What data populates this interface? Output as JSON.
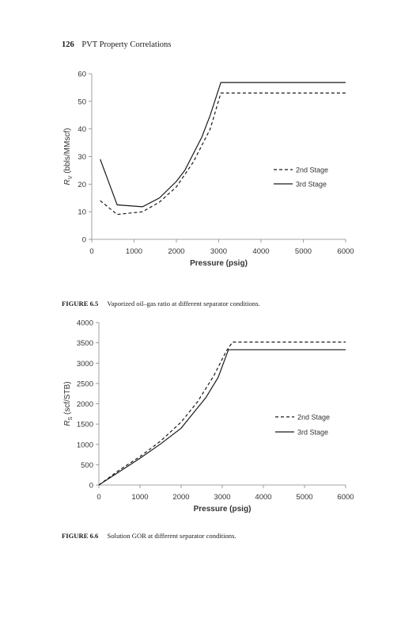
{
  "page": {
    "number": "126",
    "running_title": "PVT Property Correlations"
  },
  "figures": [
    {
      "label": "FIGURE 6.5",
      "caption": "Vaporized oil–gas ratio at different separator conditions."
    },
    {
      "label": "FIGURE 6.6",
      "caption": "Solution GOR at different separator conditions."
    }
  ],
  "chart_data": [
    {
      "type": "line",
      "title": "",
      "xlabel": "Pressure (psig)",
      "ylabel_main": "R",
      "ylabel_sub": "V",
      "ylabel_rest": " (bbls/MMscf)",
      "xlim": [
        0,
        6000
      ],
      "ylim": [
        0,
        60
      ],
      "xticks": [
        0,
        1000,
        2000,
        3000,
        4000,
        5000,
        6000
      ],
      "yticks": [
        0,
        10,
        20,
        30,
        40,
        50,
        60
      ],
      "grid": false,
      "legend_position": "right-middle",
      "series": [
        {
          "name": "2nd Stage",
          "style": "dashed",
          "color": "#1a1a1a",
          "x": [
            200,
            600,
            1200,
            1600,
            2000,
            2400,
            2600,
            2800,
            3050,
            6000
          ],
          "y": [
            14,
            9,
            10,
            13.5,
            19,
            28,
            34,
            40,
            53,
            53
          ]
        },
        {
          "name": "3rd Stage",
          "style": "solid",
          "color": "#1a1a1a",
          "x": [
            200,
            600,
            1200,
            1600,
            2000,
            2200,
            2600,
            2800,
            3050,
            6000
          ],
          "y": [
            29,
            12.5,
            11.8,
            15,
            21,
            25,
            37,
            45,
            56.8,
            56.8
          ]
        }
      ]
    },
    {
      "type": "line",
      "title": "",
      "xlabel": "Pressure (psig)",
      "ylabel_main": "R",
      "ylabel_sub": "S",
      "ylabel_rest": " (scf/STB)",
      "xlim": [
        0,
        6000
      ],
      "ylim": [
        0,
        4000
      ],
      "xticks": [
        0,
        1000,
        2000,
        3000,
        4000,
        5000,
        6000
      ],
      "yticks": [
        0,
        500,
        1000,
        1500,
        2000,
        2500,
        3000,
        3500,
        4000
      ],
      "grid": false,
      "legend_position": "right-middle",
      "series": [
        {
          "name": "2nd Stage",
          "style": "dashed",
          "color": "#1a1a1a",
          "x": [
            0,
            500,
            1000,
            1500,
            2000,
            2400,
            2800,
            3100,
            3250,
            6000
          ],
          "y": [
            0,
            370,
            700,
            1080,
            1550,
            2050,
            2700,
            3300,
            3520,
            3520
          ]
        },
        {
          "name": "3rd Stage",
          "style": "solid",
          "color": "#1a1a1a",
          "x": [
            0,
            500,
            1000,
            1500,
            2000,
            2200,
            2600,
            2900,
            3150,
            6000
          ],
          "y": [
            0,
            330,
            660,
            1010,
            1400,
            1650,
            2150,
            2650,
            3330,
            3330
          ]
        }
      ]
    }
  ]
}
